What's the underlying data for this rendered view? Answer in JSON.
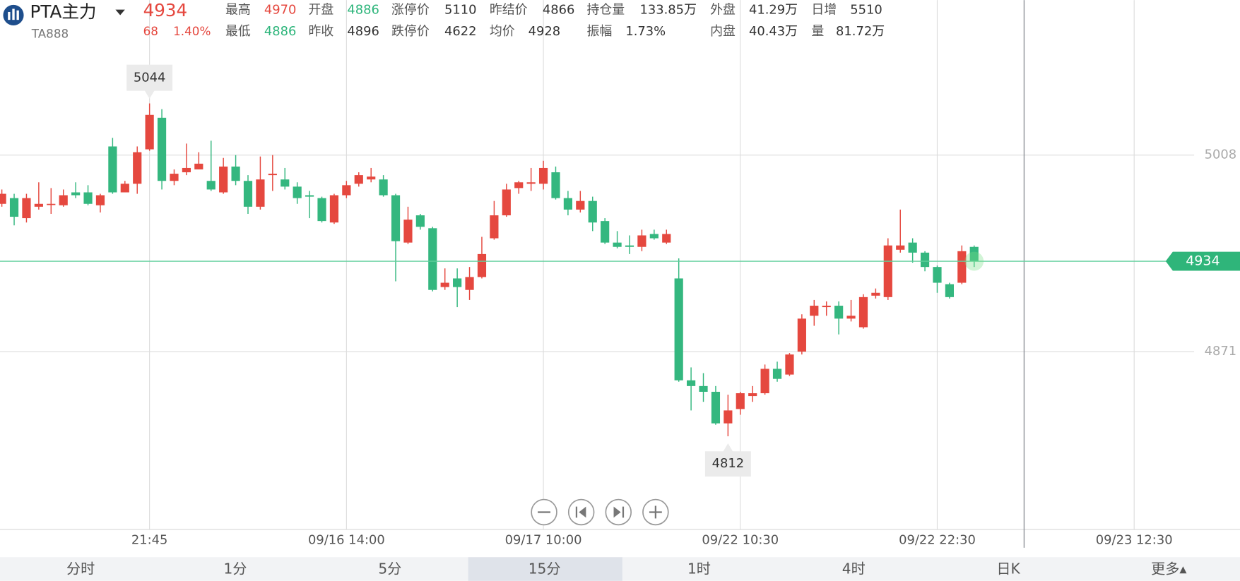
{
  "header": {
    "name": "PTA主力",
    "code": "TA888",
    "price": "4934",
    "change": "68",
    "change_pct": "1.40%",
    "stats": [
      [
        {
          "label": "最高",
          "value": "4970",
          "color": "#e5483f"
        },
        {
          "label": "开盘",
          "value": "4886",
          "color": "#2db57b"
        },
        {
          "label": "涨停价",
          "value": "5110",
          "color": "#333333"
        },
        {
          "label": "昨结价",
          "value": "4866",
          "color": "#333333"
        },
        {
          "label": "持仓量",
          "value": "133.85万",
          "color": "#333333"
        },
        {
          "label": "外盘",
          "value": "41.29万",
          "color": "#333333"
        },
        {
          "label": "日增",
          "value": "5510",
          "color": "#333333"
        }
      ],
      [
        {
          "label": "最低",
          "value": "4886",
          "color": "#2db57b"
        },
        {
          "label": "昨收",
          "value": "4896",
          "color": "#333333"
        },
        {
          "label": "跌停价",
          "value": "4622",
          "color": "#333333"
        },
        {
          "label": "均价",
          "value": "4928",
          "color": "#333333"
        },
        {
          "label": "振幅",
          "value": "1.73%",
          "color": "#333333"
        },
        {
          "label": "内盘",
          "value": "40.43万",
          "color": "#333333"
        },
        {
          "label": "量",
          "value": "81.72万",
          "color": "#333333"
        }
      ]
    ]
  },
  "chart_data": {
    "type": "candlestick",
    "up_color": "#e5483f",
    "down_color": "#34b77f",
    "grid": true,
    "open": [
      4974,
      4978,
      4964,
      4972,
      4974,
      4973,
      4982,
      4982,
      4973,
      5014,
      4982,
      4988,
      5012,
      5034,
      4990,
      4996,
      4998,
      4990,
      4982,
      5000,
      4990,
      4972,
      4994,
      4991,
      4986,
      4980,
      4978,
      4961,
      4980,
      4988,
      4991,
      4991,
      4980,
      4947,
      4966,
      4957,
      4916,
      4922,
      4914,
      4923,
      4950,
      4966,
      4985,
      4988,
      4988,
      4996,
      4978,
      4970,
      4976,
      4962,
      4947,
      4945,
      4944,
      4953,
      4947,
      4922,
      4851,
      4847,
      4843,
      4821,
      4831,
      4840,
      4842,
      4859,
      4855,
      4871,
      4896,
      4902,
      4903,
      4894,
      4888,
      4910,
      4909,
      4942,
      4947,
      4940,
      4930,
      4918,
      4919,
      4944
    ],
    "high": [
      4984,
      4981,
      4981,
      4989,
      4985,
      4984,
      4989,
      4987,
      4981,
      5020,
      4990,
      5014,
      5044,
      5040,
      4998,
      5016,
      5010,
      5018,
      5006,
      5008,
      4994,
      5007,
      5008,
      4999,
      4989,
      4983,
      4979,
      4981,
      4990,
      4996,
      4999,
      4994,
      4981,
      4972,
      4967,
      4958,
      4929,
      4929,
      4930,
      4951,
      4976,
      4988,
      4990,
      4999,
      5004,
      5000,
      4983,
      4983,
      4979,
      4964,
      4955,
      4952,
      4956,
      4956,
      4956,
      4936,
      4860,
      4856,
      4847,
      4841,
      4843,
      4847,
      4862,
      4864,
      4870,
      4897,
      4907,
      4906,
      4906,
      4907,
      4911,
      4915,
      4950,
      4970,
      4950,
      4941,
      4931,
      4919,
      4945,
      4945
    ],
    "low": [
      4972,
      4959,
      4961,
      4970,
      4967,
      4972,
      4978,
      4973,
      4968,
      4981,
      4982,
      4981,
      5011,
      4984,
      4987,
      4994,
      4998,
      4983,
      4981,
      4987,
      4967,
      4970,
      4983,
      4984,
      4974,
      4964,
      4961,
      4960,
      4978,
      4986,
      4989,
      4979,
      4920,
      4946,
      4956,
      4913,
      4914,
      4902,
      4907,
      4922,
      4949,
      4965,
      4981,
      4983,
      4984,
      4977,
      4966,
      4968,
      4955,
      4946,
      4943,
      4939,
      4941,
      4949,
      4946,
      4850,
      4830,
      4836,
      4820,
      4812,
      4827,
      4836,
      4841,
      4850,
      4854,
      4869,
      4889,
      4896,
      4883,
      4892,
      4887,
      4908,
      4907,
      4940,
      4933,
      4927,
      4912,
      4908,
      4918,
      4930
    ],
    "close": [
      4981,
      4965,
      4978,
      4974,
      4974,
      4980,
      4980,
      4974,
      4980,
      4982,
      4988,
      5010,
      5036,
      4990,
      4995,
      4999,
      5002,
      4984,
      5000,
      4990,
      4972,
      4991,
      4995,
      4986,
      4978,
      4979,
      4962,
      4980,
      4987,
      4994,
      4993,
      4980,
      4948,
      4963,
      4958,
      4914,
      4919,
      4916,
      4923,
      4939,
      4966,
      4984,
      4989,
      4989,
      4999,
      4978,
      4970,
      4976,
      4961,
      4947,
      4944,
      4944,
      4952,
      4950,
      4953,
      4851,
      4847,
      4843,
      4821,
      4830,
      4842,
      4842,
      4859,
      4852,
      4869,
      4894,
      4903,
      4903,
      4894,
      4896,
      4909,
      4912,
      4945,
      4945,
      4940,
      4930,
      4919,
      4909,
      4941,
      4934
    ],
    "xlim": [
      -0.15,
      100.6
    ],
    "ylim": [
      4747,
      5116
    ],
    "yticks": [
      5008,
      4871
    ],
    "xticks": [
      {
        "value": 12,
        "label": "21:45"
      },
      {
        "value": 28,
        "label": "09/16 14:00"
      },
      {
        "value": 44,
        "label": "09/17 10:00"
      },
      {
        "value": 60,
        "label": "09/22 10:30"
      },
      {
        "value": 76,
        "label": "09/22 22:30"
      },
      {
        "value": 92,
        "label": "09/23 12:30"
      }
    ]
  },
  "tabs": {
    "items": [
      "分时",
      "1分",
      "5分",
      "15分",
      "1时",
      "4时",
      "日K",
      "更多▴"
    ],
    "active": 3
  }
}
